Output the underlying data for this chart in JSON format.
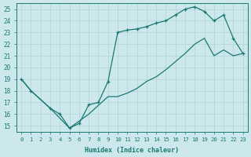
{
  "xlabel": "Humidex (Indice chaleur)",
  "bg_color": "#cce8ec",
  "line_color": "#1a7a6e",
  "grid_color": "#b8d8dc",
  "xlim": [
    -0.5,
    23.5
  ],
  "ylim": [
    14.5,
    25.5
  ],
  "yticks": [
    15,
    16,
    17,
    18,
    19,
    20,
    21,
    22,
    23,
    24,
    25
  ],
  "xticks": [
    0,
    1,
    2,
    3,
    4,
    5,
    6,
    7,
    8,
    9,
    10,
    11,
    12,
    13,
    14,
    15,
    16,
    17,
    18,
    19,
    20,
    21,
    22,
    23
  ],
  "curve1_x": [
    0,
    1,
    3,
    4,
    5,
    6,
    7,
    8,
    9,
    10,
    11,
    12,
    13,
    14,
    15,
    16,
    17,
    18,
    19,
    20,
    21,
    22,
    23
  ],
  "curve1_y": [
    19.0,
    18.0,
    16.5,
    16.0,
    14.8,
    15.2,
    16.8,
    17.0,
    18.8,
    23.0,
    23.2,
    23.3,
    23.5,
    23.8,
    24.0,
    24.5,
    25.0,
    25.2,
    24.8,
    24.0,
    24.5,
    22.5,
    21.2
  ],
  "curve2_x": [
    0,
    1,
    3,
    5,
    7,
    9,
    10,
    11,
    12,
    13,
    14,
    15,
    16,
    17,
    18,
    19,
    20,
    21,
    22,
    23
  ],
  "curve2_y": [
    19.0,
    18.0,
    16.5,
    14.8,
    16.0,
    17.5,
    17.5,
    17.8,
    18.2,
    18.8,
    19.2,
    19.8,
    20.5,
    21.2,
    22.0,
    22.5,
    21.0,
    21.5,
    21.0,
    21.2
  ]
}
